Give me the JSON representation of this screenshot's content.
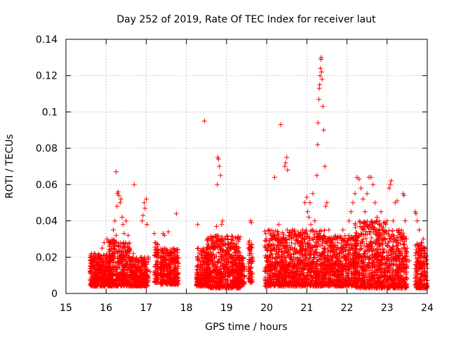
{
  "chart_data": {
    "type": "scatter",
    "title": "Day 252 of 2019, Rate Of TEC Index for receiver laut",
    "xlabel": "GPS time / hours",
    "ylabel": "ROTI / TECUs",
    "xlim": [
      15,
      24
    ],
    "ylim": [
      0,
      0.14
    ],
    "xticks": [
      15,
      16,
      17,
      18,
      19,
      20,
      21,
      22,
      23,
      24
    ],
    "xtick_labels": [
      "15",
      "16",
      "17",
      "18",
      "19",
      "20",
      "21",
      "22",
      "23",
      "24"
    ],
    "yticks": [
      0,
      0.02,
      0.04,
      0.06,
      0.08,
      0.1,
      0.12,
      0.14
    ],
    "ytick_labels": [
      "0",
      "0.02",
      "0.04",
      "0.06",
      "0.08",
      "0.1",
      "0.12",
      "0.14"
    ],
    "grid": true,
    "marker": "+",
    "color": "#ff0000",
    "series": [
      {
        "name": "ROTI",
        "points": [
          [
            15.6,
            0.012
          ],
          [
            15.62,
            0.018
          ],
          [
            15.65,
            0.009
          ],
          [
            15.68,
            0.015
          ],
          [
            15.7,
            0.022
          ],
          [
            15.75,
            0.011
          ],
          [
            15.78,
            0.019
          ],
          [
            15.8,
            0.008
          ],
          [
            15.85,
            0.016
          ],
          [
            15.88,
            0.013
          ],
          [
            15.9,
            0.025
          ],
          [
            15.92,
            0.017
          ],
          [
            15.95,
            0.028
          ],
          [
            15.97,
            0.012
          ],
          [
            16.0,
            0.021
          ],
          [
            16.02,
            0.03
          ],
          [
            16.05,
            0.014
          ],
          [
            16.08,
            0.026
          ],
          [
            16.1,
            0.018
          ],
          [
            16.12,
            0.008
          ],
          [
            16.15,
            0.022
          ],
          [
            16.18,
            0.035
          ],
          [
            16.2,
            0.028
          ],
          [
            16.22,
            0.04
          ],
          [
            16.25,
            0.032
          ],
          [
            16.27,
            0.048
          ],
          [
            16.28,
            0.055
          ],
          [
            16.3,
            0.056
          ],
          [
            16.32,
            0.054
          ],
          [
            16.35,
            0.05
          ],
          [
            16.37,
            0.052
          ],
          [
            16.4,
            0.042
          ],
          [
            16.42,
            0.038
          ],
          [
            16.45,
            0.033
          ],
          [
            16.5,
            0.04
          ],
          [
            16.55,
            0.032
          ],
          [
            16.25,
            0.067
          ],
          [
            16.6,
            0.018
          ],
          [
            16.65,
            0.012
          ],
          [
            16.68,
            0.022
          ],
          [
            16.7,
            0.06
          ],
          [
            16.72,
            0.015
          ],
          [
            16.75,
            0.009
          ],
          [
            16.8,
            0.018
          ],
          [
            16.85,
            0.013
          ],
          [
            16.9,
            0.04
          ],
          [
            16.92,
            0.043
          ],
          [
            16.95,
            0.05
          ],
          [
            16.97,
            0.047
          ],
          [
            17.0,
            0.052
          ],
          [
            17.02,
            0.038
          ],
          [
            17.05,
            0.02
          ],
          [
            17.1,
            0.012
          ],
          [
            17.2,
            0.033
          ],
          [
            17.22,
            0.028
          ],
          [
            17.3,
            0.01
          ],
          [
            17.35,
            0.015
          ],
          [
            17.42,
            0.033
          ],
          [
            17.45,
            0.032
          ],
          [
            17.5,
            0.022
          ],
          [
            17.55,
            0.034
          ],
          [
            17.6,
            0.018
          ],
          [
            17.65,
            0.012
          ],
          [
            17.7,
            0.02
          ],
          [
            17.75,
            0.044
          ],
          [
            17.78,
            0.024
          ],
          [
            17.8,
            0.015
          ],
          [
            18.28,
            0.038
          ],
          [
            18.3,
            0.018
          ],
          [
            18.35,
            0.012
          ],
          [
            18.45,
            0.095
          ],
          [
            18.5,
            0.02
          ],
          [
            18.55,
            0.014
          ],
          [
            18.6,
            0.022
          ],
          [
            18.65,
            0.03
          ],
          [
            18.7,
            0.027
          ],
          [
            18.75,
            0.037
          ],
          [
            18.77,
            0.06
          ],
          [
            18.78,
            0.075
          ],
          [
            18.8,
            0.074
          ],
          [
            18.82,
            0.07
          ],
          [
            18.85,
            0.065
          ],
          [
            18.88,
            0.038
          ],
          [
            18.9,
            0.04
          ],
          [
            18.95,
            0.03
          ],
          [
            19.0,
            0.022
          ],
          [
            19.05,
            0.018
          ],
          [
            19.1,
            0.026
          ],
          [
            19.15,
            0.015
          ],
          [
            19.2,
            0.012
          ],
          [
            19.25,
            0.024
          ],
          [
            19.3,
            0.018
          ],
          [
            19.35,
            0.02
          ],
          [
            19.4,
            0.01
          ],
          [
            19.55,
            0.025
          ],
          [
            19.6,
            0.04
          ],
          [
            19.62,
            0.039
          ],
          [
            19.65,
            0.02
          ],
          [
            20.0,
            0.018
          ],
          [
            20.05,
            0.035
          ],
          [
            20.1,
            0.024
          ],
          [
            20.15,
            0.02
          ],
          [
            20.2,
            0.064
          ],
          [
            20.25,
            0.03
          ],
          [
            20.3,
            0.038
          ],
          [
            20.35,
            0.093
          ],
          [
            20.4,
            0.028
          ],
          [
            20.45,
            0.07
          ],
          [
            20.47,
            0.072
          ],
          [
            20.5,
            0.075
          ],
          [
            20.52,
            0.068
          ],
          [
            20.55,
            0.032
          ],
          [
            20.6,
            0.02
          ],
          [
            20.65,
            0.015
          ],
          [
            20.7,
            0.025
          ],
          [
            20.75,
            0.012
          ],
          [
            20.8,
            0.018
          ],
          [
            20.85,
            0.028
          ],
          [
            20.9,
            0.035
          ],
          [
            20.95,
            0.05
          ],
          [
            21.0,
            0.053
          ],
          [
            21.02,
            0.045
          ],
          [
            21.05,
            0.042
          ],
          [
            21.08,
            0.05
          ],
          [
            21.1,
            0.038
          ],
          [
            21.15,
            0.055
          ],
          [
            21.2,
            0.04
          ],
          [
            21.25,
            0.065
          ],
          [
            21.27,
            0.082
          ],
          [
            21.28,
            0.094
          ],
          [
            21.3,
            0.107
          ],
          [
            21.31,
            0.113
          ],
          [
            21.32,
            0.115
          ],
          [
            21.33,
            0.12
          ],
          [
            21.34,
            0.124
          ],
          [
            21.35,
            0.129
          ],
          [
            21.36,
            0.13
          ],
          [
            21.37,
            0.122
          ],
          [
            21.38,
            0.118
          ],
          [
            21.4,
            0.103
          ],
          [
            21.42,
            0.09
          ],
          [
            21.45,
            0.07
          ],
          [
            21.47,
            0.048
          ],
          [
            21.5,
            0.05
          ],
          [
            21.55,
            0.035
          ],
          [
            21.6,
            0.028
          ],
          [
            21.65,
            0.02
          ],
          [
            21.7,
            0.03
          ],
          [
            21.75,
            0.024
          ],
          [
            21.8,
            0.018
          ],
          [
            21.85,
            0.025
          ],
          [
            21.9,
            0.035
          ],
          [
            21.95,
            0.03
          ],
          [
            22.0,
            0.028
          ],
          [
            22.05,
            0.04
          ],
          [
            22.1,
            0.045
          ],
          [
            22.15,
            0.05
          ],
          [
            22.2,
            0.055
          ],
          [
            22.25,
            0.064
          ],
          [
            22.3,
            0.063
          ],
          [
            22.35,
            0.058
          ],
          [
            22.4,
            0.052
          ],
          [
            22.45,
            0.045
          ],
          [
            22.5,
            0.055
          ],
          [
            22.55,
            0.064
          ],
          [
            22.6,
            0.064
          ],
          [
            22.65,
            0.06
          ],
          [
            22.7,
            0.05
          ],
          [
            22.75,
            0.042
          ],
          [
            22.8,
            0.038
          ],
          [
            22.85,
            0.045
          ],
          [
            22.9,
            0.035
          ],
          [
            22.95,
            0.03
          ],
          [
            23.0,
            0.04
          ],
          [
            23.05,
            0.058
          ],
          [
            23.08,
            0.06
          ],
          [
            23.1,
            0.062
          ],
          [
            23.15,
            0.04
          ],
          [
            23.2,
            0.05
          ],
          [
            23.25,
            0.051
          ],
          [
            23.3,
            0.035
          ],
          [
            23.35,
            0.03
          ],
          [
            23.4,
            0.055
          ],
          [
            23.42,
            0.054
          ],
          [
            23.45,
            0.04
          ],
          [
            23.5,
            0.025
          ],
          [
            23.55,
            0.018
          ],
          [
            23.7,
            0.045
          ],
          [
            23.72,
            0.044
          ],
          [
            23.75,
            0.04
          ],
          [
            23.8,
            0.035
          ],
          [
            23.85,
            0.028
          ],
          [
            23.9,
            0.03
          ],
          [
            23.95,
            0.025
          ]
        ],
        "dense_bands": [
          {
            "x": [
              15.6,
              16.1
            ],
            "y": [
              0.004,
              0.022
            ]
          },
          {
            "x": [
              16.05,
              16.3
            ],
            "y": [
              0.004,
              0.03
            ]
          },
          {
            "x": [
              16.3,
              16.6
            ],
            "y": [
              0.004,
              0.028
            ]
          },
          {
            "x": [
              16.6,
              17.05
            ],
            "y": [
              0.004,
              0.02
            ]
          },
          {
            "x": [
              17.2,
              17.3
            ],
            "y": [
              0.006,
              0.028
            ]
          },
          {
            "x": [
              17.35,
              17.8
            ],
            "y": [
              0.005,
              0.025
            ]
          },
          {
            "x": [
              18.25,
              18.55
            ],
            "y": [
              0.004,
              0.025
            ]
          },
          {
            "x": [
              18.5,
              19.35
            ],
            "y": [
              0.003,
              0.032
            ]
          },
          {
            "x": [
              19.3,
              19.45
            ],
            "y": [
              0.005,
              0.02
            ]
          },
          {
            "x": [
              19.55,
              19.65
            ],
            "y": [
              0.006,
              0.03
            ]
          },
          {
            "x": [
              19.95,
              20.75
            ],
            "y": [
              0.004,
              0.035
            ]
          },
          {
            "x": [
              20.75,
              21.45
            ],
            "y": [
              0.004,
              0.035
            ]
          },
          {
            "x": [
              21.45,
              22.25
            ],
            "y": [
              0.004,
              0.032
            ]
          },
          {
            "x": [
              22.2,
              23.0
            ],
            "y": [
              0.003,
              0.04
            ]
          },
          {
            "x": [
              23.0,
              23.5
            ],
            "y": [
              0.003,
              0.035
            ]
          },
          {
            "x": [
              23.7,
              24.0
            ],
            "y": [
              0.003,
              0.028
            ]
          }
        ]
      }
    ]
  }
}
